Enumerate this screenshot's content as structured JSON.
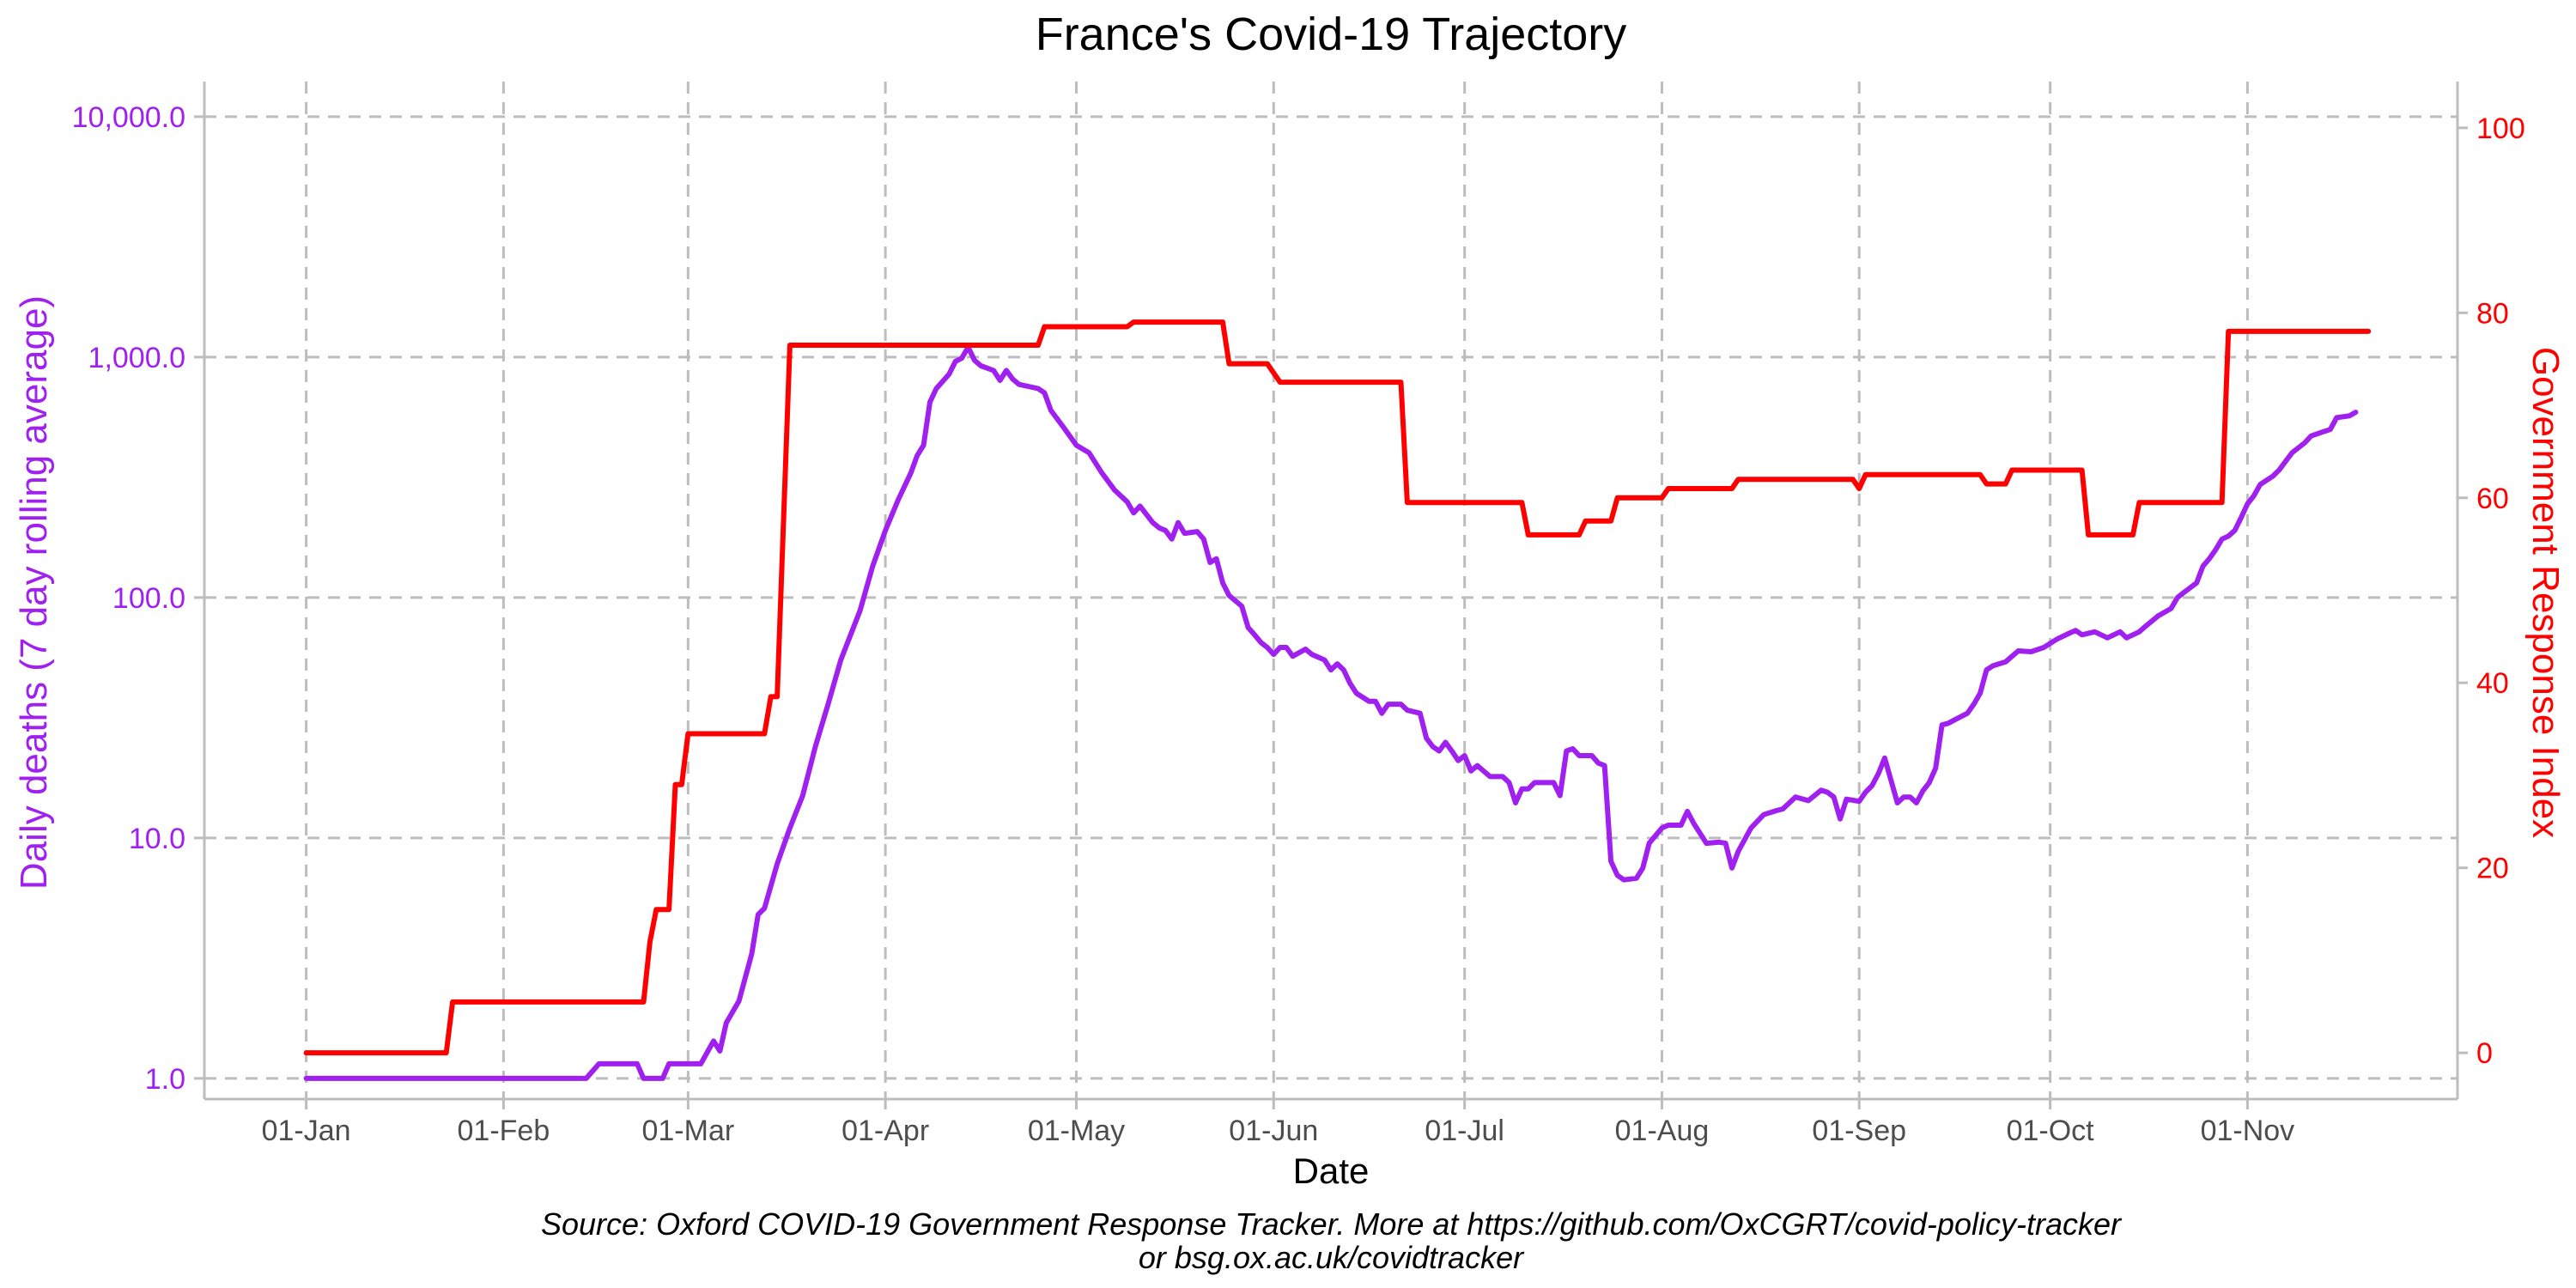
{
  "chart_data": {
    "type": "line",
    "title": "France's Covid-19 Trajectory",
    "xlabel": "Date",
    "ylabel_left": "Daily deaths (7 day rolling average)",
    "ylabel_right": "Government Response Index",
    "caption_line1": "Source: Oxford COVID-19 Government Response Tracker. More at https://github.com/OxCGRT/covid-policy-tracker",
    "caption_line2": "or bsg.ox.ac.uk/covidtracker",
    "x_ticks": [
      "01-Jan",
      "01-Feb",
      "01-Mar",
      "01-Apr",
      "01-May",
      "01-Jun",
      "01-Jul",
      "01-Aug",
      "01-Sep",
      "01-Oct",
      "01-Nov"
    ],
    "x_tick_dates": [
      "2020-01-01",
      "2020-02-01",
      "2020-03-01",
      "2020-04-01",
      "2020-05-01",
      "2020-06-01",
      "2020-07-01",
      "2020-08-01",
      "2020-09-01",
      "2020-10-01",
      "2020-11-01"
    ],
    "x_range": [
      "2019-12-16",
      "2020-12-04"
    ],
    "y_left_scale": "log",
    "y_left_ticks": [
      1,
      10,
      100,
      1000,
      10000
    ],
    "y_left_tick_labels": [
      "1.0",
      "10.0",
      "100.0",
      "1,000.0",
      "10,000.0"
    ],
    "y_left_range": [
      0.82,
      14000
    ],
    "y_right_ticks": [
      0,
      20,
      40,
      60,
      80,
      100
    ],
    "y_right_tick_labels": [
      "0",
      "20",
      "40",
      "60",
      "80",
      "100"
    ],
    "y_right_range": [
      -5,
      105
    ],
    "grid": true,
    "colors": {
      "deaths": "#a020f0",
      "response": "#ff0000",
      "grid": "#bdbdbd",
      "axis": "#bdbdbd",
      "tick_text_x": "#4d4d4d"
    },
    "series": [
      {
        "axis": "left",
        "color": "#a020f0",
        "points": [
          [
            "2020-01-01",
            1
          ],
          [
            "2020-02-01",
            1
          ],
          [
            "2020-02-14",
            1
          ],
          [
            "2020-02-16",
            1.15
          ],
          [
            "2020-02-22",
            1.15
          ],
          [
            "2020-02-23",
            1
          ],
          [
            "2020-02-26",
            1
          ],
          [
            "2020-02-27",
            1.15
          ],
          [
            "2020-03-03",
            1.15
          ],
          [
            "2020-03-05",
            1.43
          ],
          [
            "2020-03-06",
            1.3
          ],
          [
            "2020-03-07",
            1.7
          ],
          [
            "2020-03-09",
            2.1
          ],
          [
            "2020-03-11",
            3.3
          ],
          [
            "2020-03-12",
            4.8
          ],
          [
            "2020-03-13",
            5.1
          ],
          [
            "2020-03-15",
            7.8
          ],
          [
            "2020-03-17",
            11
          ],
          [
            "2020-03-19",
            15
          ],
          [
            "2020-03-21",
            24
          ],
          [
            "2020-03-23",
            36
          ],
          [
            "2020-03-25",
            55
          ],
          [
            "2020-03-28",
            88
          ],
          [
            "2020-03-30",
            135
          ],
          [
            "2020-04-01",
            190
          ],
          [
            "2020-04-03",
            255
          ],
          [
            "2020-04-05",
            330
          ],
          [
            "2020-04-06",
            390
          ],
          [
            "2020-04-07",
            430
          ],
          [
            "2020-04-08",
            650
          ],
          [
            "2020-04-09",
            740
          ],
          [
            "2020-04-11",
            850
          ],
          [
            "2020-04-12",
            960
          ],
          [
            "2020-04-13",
            990
          ],
          [
            "2020-04-14",
            1100
          ],
          [
            "2020-04-15",
            970
          ],
          [
            "2020-04-16",
            920
          ],
          [
            "2020-04-18",
            880
          ],
          [
            "2020-04-19",
            800
          ],
          [
            "2020-04-20",
            880
          ],
          [
            "2020-04-21",
            810
          ],
          [
            "2020-04-22",
            770
          ],
          [
            "2020-04-25",
            740
          ],
          [
            "2020-04-26",
            710
          ],
          [
            "2020-04-27",
            600
          ],
          [
            "2020-04-29",
            510
          ],
          [
            "2020-05-01",
            430
          ],
          [
            "2020-05-03",
            400
          ],
          [
            "2020-05-05",
            330
          ],
          [
            "2020-05-07",
            280
          ],
          [
            "2020-05-09",
            250
          ],
          [
            "2020-05-10",
            225
          ],
          [
            "2020-05-11",
            240
          ],
          [
            "2020-05-13",
            205
          ],
          [
            "2020-05-14",
            195
          ],
          [
            "2020-05-15",
            190
          ],
          [
            "2020-05-16",
            175
          ],
          [
            "2020-05-17",
            205
          ],
          [
            "2020-05-18",
            185
          ],
          [
            "2020-05-20",
            188
          ],
          [
            "2020-05-21",
            175
          ],
          [
            "2020-05-22",
            140
          ],
          [
            "2020-05-23",
            145
          ],
          [
            "2020-05-24",
            115
          ],
          [
            "2020-05-25",
            102
          ],
          [
            "2020-05-27",
            92
          ],
          [
            "2020-05-28",
            75
          ],
          [
            "2020-05-29",
            70
          ],
          [
            "2020-05-30",
            65
          ],
          [
            "2020-05-31",
            62
          ],
          [
            "2020-06-01",
            58
          ],
          [
            "2020-06-02",
            62
          ],
          [
            "2020-06-03",
            62
          ],
          [
            "2020-06-04",
            57
          ],
          [
            "2020-06-05",
            59
          ],
          [
            "2020-06-06",
            61
          ],
          [
            "2020-06-07",
            58
          ],
          [
            "2020-06-09",
            55
          ],
          [
            "2020-06-10",
            50
          ],
          [
            "2020-06-11",
            53
          ],
          [
            "2020-06-12",
            50
          ],
          [
            "2020-06-13",
            44
          ],
          [
            "2020-06-14",
            40
          ],
          [
            "2020-06-16",
            37
          ],
          [
            "2020-06-17",
            37
          ],
          [
            "2020-06-18",
            33
          ],
          [
            "2020-06-19",
            36
          ],
          [
            "2020-06-21",
            36
          ],
          [
            "2020-06-22",
            34
          ],
          [
            "2020-06-24",
            33
          ],
          [
            "2020-06-25",
            26
          ],
          [
            "2020-06-26",
            24
          ],
          [
            "2020-06-27",
            23
          ],
          [
            "2020-06-28",
            25
          ],
          [
            "2020-06-29",
            23
          ],
          [
            "2020-06-30",
            21
          ],
          [
            "2020-07-01",
            22
          ],
          [
            "2020-07-02",
            19
          ],
          [
            "2020-07-03",
            20
          ],
          [
            "2020-07-05",
            18
          ],
          [
            "2020-07-07",
            18
          ],
          [
            "2020-07-08",
            17
          ],
          [
            "2020-07-09",
            14
          ],
          [
            "2020-07-10",
            16
          ],
          [
            "2020-07-11",
            16
          ],
          [
            "2020-07-12",
            17
          ],
          [
            "2020-07-15",
            17
          ],
          [
            "2020-07-16",
            15
          ],
          [
            "2020-07-17",
            23
          ],
          [
            "2020-07-18",
            23.5
          ],
          [
            "2020-07-19",
            22
          ],
          [
            "2020-07-21",
            22
          ],
          [
            "2020-07-22",
            20.5
          ],
          [
            "2020-07-23",
            20
          ],
          [
            "2020-07-24",
            8
          ],
          [
            "2020-07-25",
            7
          ],
          [
            "2020-07-26",
            6.7
          ],
          [
            "2020-07-28",
            6.8
          ],
          [
            "2020-07-29",
            7.5
          ],
          [
            "2020-07-30",
            9.5
          ],
          [
            "2020-08-01",
            11
          ],
          [
            "2020-08-02",
            11.3
          ],
          [
            "2020-08-04",
            11.3
          ],
          [
            "2020-08-05",
            12.9
          ],
          [
            "2020-08-06",
            11.5
          ],
          [
            "2020-08-08",
            9.5
          ],
          [
            "2020-08-10",
            9.6
          ],
          [
            "2020-08-11",
            9.5
          ],
          [
            "2020-08-12",
            7.5
          ],
          [
            "2020-08-13",
            8.8
          ],
          [
            "2020-08-15",
            11
          ],
          [
            "2020-08-17",
            12.5
          ],
          [
            "2020-08-19",
            13
          ],
          [
            "2020-08-20",
            13.2
          ],
          [
            "2020-08-22",
            14.8
          ],
          [
            "2020-08-24",
            14.3
          ],
          [
            "2020-08-26",
            15.8
          ],
          [
            "2020-08-27",
            15.5
          ],
          [
            "2020-08-28",
            14.8
          ],
          [
            "2020-08-29",
            12
          ],
          [
            "2020-08-30",
            14.5
          ],
          [
            "2020-09-01",
            14.2
          ],
          [
            "2020-09-02",
            15.5
          ],
          [
            "2020-09-03",
            16.5
          ],
          [
            "2020-09-04",
            18.5
          ],
          [
            "2020-09-05",
            21.5
          ],
          [
            "2020-09-07",
            14
          ],
          [
            "2020-09-08",
            14.8
          ],
          [
            "2020-09-09",
            14.8
          ],
          [
            "2020-09-10",
            14
          ],
          [
            "2020-09-11",
            15.7
          ],
          [
            "2020-09-12",
            17
          ],
          [
            "2020-09-13",
            19.5
          ],
          [
            "2020-09-14",
            29.5
          ],
          [
            "2020-09-15",
            30
          ],
          [
            "2020-09-16",
            31
          ],
          [
            "2020-09-18",
            33
          ],
          [
            "2020-09-19",
            36
          ],
          [
            "2020-09-20",
            40
          ],
          [
            "2020-09-21",
            50
          ],
          [
            "2020-09-22",
            52
          ],
          [
            "2020-09-24",
            54
          ],
          [
            "2020-09-26",
            60
          ],
          [
            "2020-09-28",
            59.5
          ],
          [
            "2020-09-30",
            62
          ],
          [
            "2020-10-02",
            67
          ],
          [
            "2020-10-04",
            71
          ],
          [
            "2020-10-05",
            73
          ],
          [
            "2020-10-06",
            70
          ],
          [
            "2020-10-08",
            72
          ],
          [
            "2020-10-10",
            68
          ],
          [
            "2020-10-12",
            72
          ],
          [
            "2020-10-13",
            68
          ],
          [
            "2020-10-15",
            72
          ],
          [
            "2020-10-16",
            76
          ],
          [
            "2020-10-18",
            84
          ],
          [
            "2020-10-20",
            90
          ],
          [
            "2020-10-21",
            100
          ],
          [
            "2020-10-22",
            105
          ],
          [
            "2020-10-24",
            115
          ],
          [
            "2020-10-25",
            135
          ],
          [
            "2020-10-26",
            145
          ],
          [
            "2020-10-27",
            158
          ],
          [
            "2020-10-28",
            175
          ],
          [
            "2020-10-29",
            180
          ],
          [
            "2020-10-30",
            190
          ],
          [
            "2020-10-31",
            215
          ],
          [
            "2020-11-01",
            245
          ],
          [
            "2020-11-02",
            265
          ],
          [
            "2020-11-03",
            295
          ],
          [
            "2020-11-05",
            320
          ],
          [
            "2020-11-06",
            340
          ],
          [
            "2020-11-08",
            400
          ],
          [
            "2020-11-10",
            440
          ],
          [
            "2020-11-11",
            470
          ],
          [
            "2020-11-13",
            490
          ],
          [
            "2020-11-14",
            500
          ],
          [
            "2020-11-15",
            560
          ],
          [
            "2020-11-17",
            570
          ],
          [
            "2020-11-18",
            590
          ]
        ]
      },
      {
        "axis": "right",
        "color": "#ff0000",
        "points": [
          [
            "2020-01-01",
            0
          ],
          [
            "2020-01-23",
            0
          ],
          [
            "2020-01-24",
            5.5
          ],
          [
            "2020-02-23",
            5.5
          ],
          [
            "2020-02-24",
            12
          ],
          [
            "2020-02-25",
            15.5
          ],
          [
            "2020-02-27",
            15.5
          ],
          [
            "2020-02-28",
            29
          ],
          [
            "2020-02-29",
            29
          ],
          [
            "2020-03-01",
            34.5
          ],
          [
            "2020-03-13",
            34.5
          ],
          [
            "2020-03-14",
            38.5
          ],
          [
            "2020-03-15",
            38.5
          ],
          [
            "2020-03-17",
            76.5
          ],
          [
            "2020-04-25",
            76.5
          ],
          [
            "2020-04-26",
            78.5
          ],
          [
            "2020-05-09",
            78.5
          ],
          [
            "2020-05-10",
            79
          ],
          [
            "2020-05-24",
            79
          ],
          [
            "2020-05-25",
            74.5
          ],
          [
            "2020-05-31",
            74.5
          ],
          [
            "2020-06-02",
            72.5
          ],
          [
            "2020-06-21",
            72.5
          ],
          [
            "2020-06-22",
            59.5
          ],
          [
            "2020-07-10",
            59.5
          ],
          [
            "2020-07-11",
            56
          ],
          [
            "2020-07-19",
            56
          ],
          [
            "2020-07-20",
            57.5
          ],
          [
            "2020-07-24",
            57.5
          ],
          [
            "2020-07-25",
            60
          ],
          [
            "2020-08-01",
            60
          ],
          [
            "2020-08-02",
            61
          ],
          [
            "2020-08-12",
            61
          ],
          [
            "2020-08-13",
            62
          ],
          [
            "2020-08-31",
            62
          ],
          [
            "2020-09-01",
            61
          ],
          [
            "2020-09-02",
            62.5
          ],
          [
            "2020-09-20",
            62.5
          ],
          [
            "2020-09-21",
            61.5
          ],
          [
            "2020-09-24",
            61.5
          ],
          [
            "2020-09-25",
            63
          ],
          [
            "2020-10-06",
            63
          ],
          [
            "2020-10-07",
            56
          ],
          [
            "2020-10-14",
            56
          ],
          [
            "2020-10-15",
            59.5
          ],
          [
            "2020-10-28",
            59.5
          ],
          [
            "2020-10-29",
            78
          ],
          [
            "2020-11-20",
            78
          ]
        ]
      }
    ]
  }
}
